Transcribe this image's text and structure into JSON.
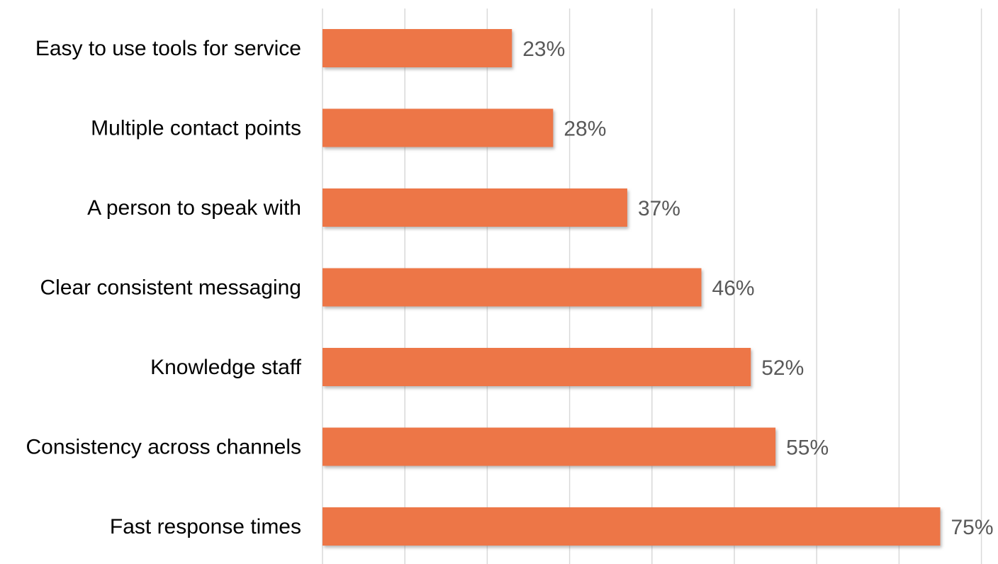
{
  "chart_data": {
    "type": "bar",
    "orientation": "horizontal",
    "categories": [
      "Easy to use tools for service",
      "Multiple contact points",
      "A person to speak with",
      "Clear consistent messaging",
      "Knowledge staff",
      "Consistency across channels",
      "Fast response times"
    ],
    "values": [
      23,
      28,
      37,
      46,
      52,
      55,
      75
    ],
    "data_labels": [
      "23%",
      "28%",
      "37%",
      "46%",
      "52%",
      "55%",
      "75%"
    ],
    "unit": "%",
    "xlim": [
      0,
      80
    ],
    "gridlines": true,
    "gridline_interval": 10,
    "tick_labels_shown": false,
    "legend": "none",
    "title": "",
    "xlabel": "",
    "ylabel": "",
    "colors": {
      "bar": "#ED7647",
      "bar_shadow": "#9e9e9e",
      "grid": "#d9d9d9",
      "category_text": "#000000",
      "value_text": "#595959"
    }
  }
}
